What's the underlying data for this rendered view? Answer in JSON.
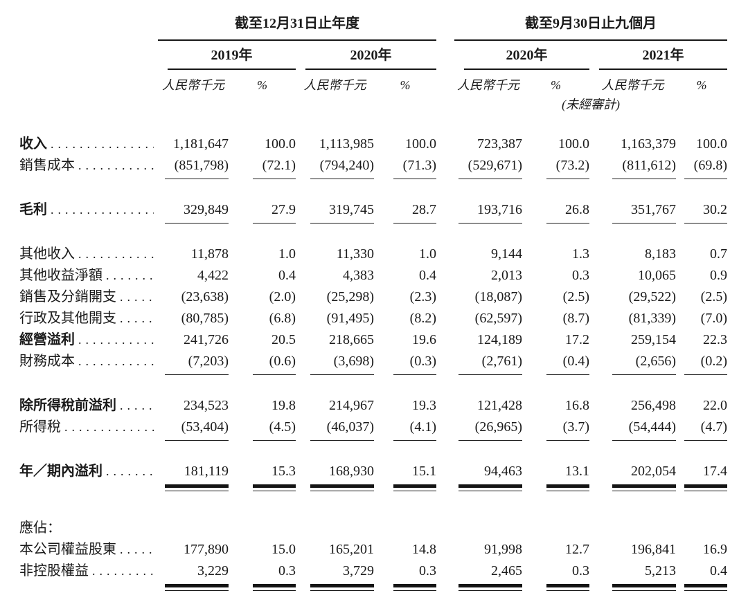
{
  "table": {
    "col_groups": [
      {
        "title": "截至12月31日止年度",
        "years": [
          "2019年",
          "2020年"
        ]
      },
      {
        "title": "截至9月30日止九個月",
        "years": [
          "2020年",
          "2021年"
        ],
        "note": "(未經審計)"
      }
    ],
    "headers": {
      "unit": "人民幣千元",
      "pct": "%"
    },
    "rows": [
      {
        "label": "收入",
        "bold": true,
        "first": true,
        "values": [
          "1,181,647",
          "100.0",
          "1,113,985",
          "100.0",
          "723,387",
          "100.0",
          "1,163,379",
          "100.0"
        ]
      },
      {
        "label": "銷售成本",
        "rule": "single",
        "values": [
          "(851,798)",
          "(72.1)",
          "(794,240)",
          "(71.3)",
          "(529,671)",
          "(73.2)",
          "(811,612)",
          "(69.8)"
        ]
      },
      {
        "label": "毛利",
        "bold": true,
        "gap": true,
        "rule": "single",
        "values": [
          "329,849",
          "27.9",
          "319,745",
          "28.7",
          "193,716",
          "26.8",
          "351,767",
          "30.2"
        ]
      },
      {
        "label": "其他收入",
        "gap": true,
        "values": [
          "11,878",
          "1.0",
          "11,330",
          "1.0",
          "9,144",
          "1.3",
          "8,183",
          "0.7"
        ]
      },
      {
        "label": "其他收益淨額",
        "values": [
          "4,422",
          "0.4",
          "4,383",
          "0.4",
          "2,013",
          "0.3",
          "10,065",
          "0.9"
        ]
      },
      {
        "label": "銷售及分銷開支",
        "values": [
          "(23,638)",
          "(2.0)",
          "(25,298)",
          "(2.3)",
          "(18,087)",
          "(2.5)",
          "(29,522)",
          "(2.5)"
        ]
      },
      {
        "label": "行政及其他開支",
        "values": [
          "(80,785)",
          "(6.8)",
          "(91,495)",
          "(8.2)",
          "(62,597)",
          "(8.7)",
          "(81,339)",
          "(7.0)"
        ]
      },
      {
        "label": "經營溢利",
        "bold": true,
        "values": [
          "241,726",
          "20.5",
          "218,665",
          "19.6",
          "124,189",
          "17.2",
          "259,154",
          "22.3"
        ]
      },
      {
        "label": "財務成本",
        "rule": "single",
        "values": [
          "(7,203)",
          "(0.6)",
          "(3,698)",
          "(0.3)",
          "(2,761)",
          "(0.4)",
          "(2,656)",
          "(0.2)"
        ]
      },
      {
        "label": "除所得稅前溢利",
        "bold": true,
        "gap": true,
        "values": [
          "234,523",
          "19.8",
          "214,967",
          "19.3",
          "121,428",
          "16.8",
          "256,498",
          "22.0"
        ]
      },
      {
        "label": "所得稅",
        "rule": "single",
        "values": [
          "(53,404)",
          "(4.5)",
          "(46,037)",
          "(4.1)",
          "(26,965)",
          "(3.7)",
          "(54,444)",
          "(4.7)"
        ]
      },
      {
        "label": "年／期內溢利",
        "bold": true,
        "gap": true,
        "rule": "double",
        "values": [
          "181,119",
          "15.3",
          "168,930",
          "15.1",
          "94,463",
          "13.1",
          "202,054",
          "17.4"
        ]
      },
      {
        "label": "應佔：",
        "gap_large": true,
        "dots": false,
        "values": []
      },
      {
        "label": "本公司權益股東",
        "values": [
          "177,890",
          "15.0",
          "165,201",
          "14.8",
          "91,998",
          "12.7",
          "196,841",
          "16.9"
        ]
      },
      {
        "label": "非控股權益",
        "rule": "double",
        "values": [
          "3,229",
          "0.3",
          "3,729",
          "0.3",
          "2,465",
          "0.3",
          "5,213",
          "0.4"
        ]
      }
    ]
  }
}
